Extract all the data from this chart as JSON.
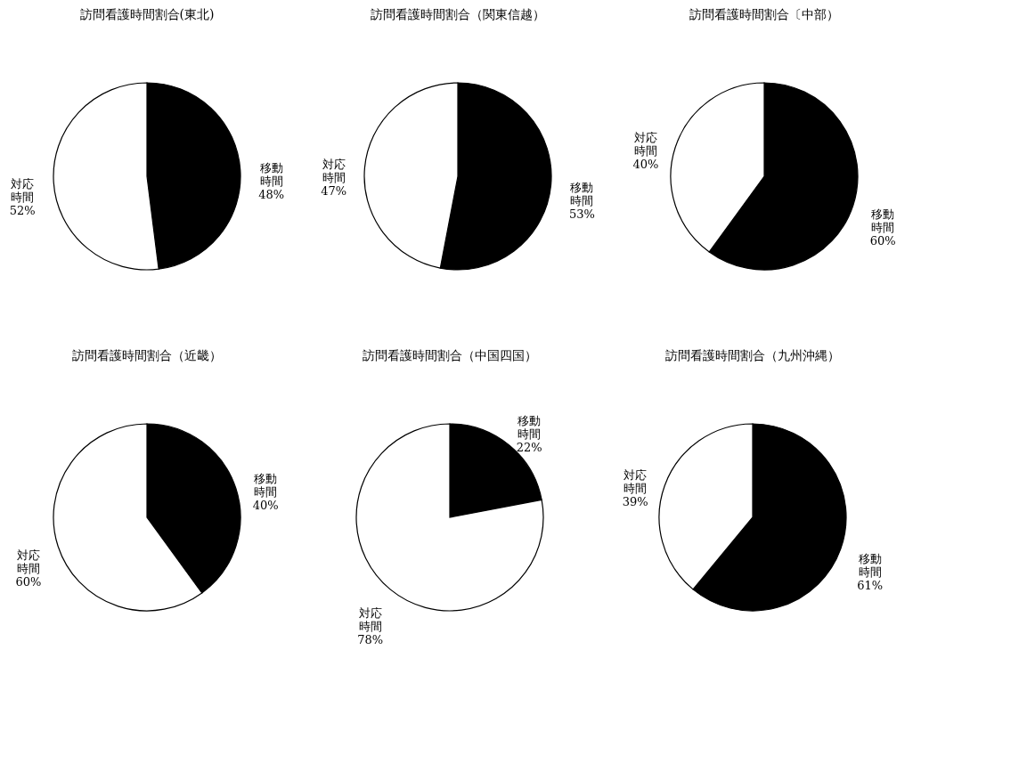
{
  "chart_data": [
    {
      "type": "pie",
      "title": "訪問看護時間割合(東北)",
      "categories": [
        "移動時間",
        "対応時間"
      ],
      "values": [
        48,
        52
      ],
      "colors": [
        "#000000",
        "#ffffff"
      ],
      "value_labels": [
        "48%",
        "52%"
      ],
      "legend": false
    },
    {
      "type": "pie",
      "title": "訪問看護時間割合（関東信越）",
      "categories": [
        "移動時間",
        "対応時間"
      ],
      "values": [
        53,
        47
      ],
      "colors": [
        "#000000",
        "#ffffff"
      ],
      "value_labels": [
        "53%",
        "47%"
      ],
      "legend": false
    },
    {
      "type": "pie",
      "title": "訪問看護時間割合〔中部）",
      "categories": [
        "移動時間",
        "対応時間"
      ],
      "values": [
        60,
        40
      ],
      "colors": [
        "#000000",
        "#ffffff"
      ],
      "value_labels": [
        "60%",
        "40%"
      ],
      "legend": false
    },
    {
      "type": "pie",
      "title": "訪問看護時間割合（近畿）",
      "categories": [
        "移動時間",
        "対応時間"
      ],
      "values": [
        40,
        60
      ],
      "colors": [
        "#000000",
        "#ffffff"
      ],
      "value_labels": [
        "40%",
        "60%"
      ],
      "legend": false
    },
    {
      "type": "pie",
      "title": "訪問看護時間割合（中国四国）",
      "categories": [
        "移動時間",
        "対応時間"
      ],
      "values": [
        22,
        78
      ],
      "colors": [
        "#000000",
        "#ffffff"
      ],
      "value_labels": [
        "22%",
        "78%"
      ],
      "legend": false
    },
    {
      "type": "pie",
      "title": "訪問看護時間割合（九州沖縄）",
      "categories": [
        "移動時間",
        "対応時間"
      ],
      "values": [
        61,
        39
      ],
      "colors": [
        "#000000",
        "#ffffff"
      ],
      "value_labels": [
        "61%",
        "39%"
      ],
      "legend": false
    }
  ]
}
